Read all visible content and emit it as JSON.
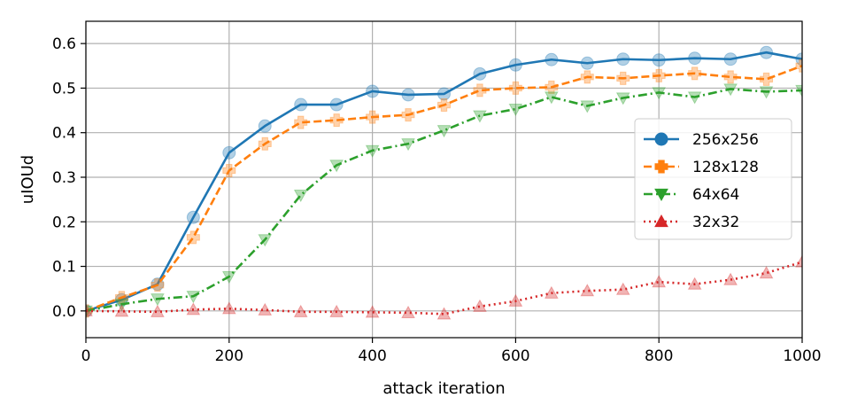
{
  "chart_data": {
    "type": "line",
    "title": "",
    "xlabel": "attack iteration",
    "ylabel": "uIOUd",
    "xlim": [
      0,
      1000
    ],
    "ylim": [
      -0.06,
      0.65
    ],
    "xticks": [
      0,
      200,
      400,
      600,
      800,
      1000
    ],
    "yticks": [
      0.0,
      0.1,
      0.2,
      0.3,
      0.4,
      0.5,
      0.6
    ],
    "xtick_labels": [
      "0",
      "200",
      "400",
      "600",
      "800",
      "1000"
    ],
    "ytick_labels": [
      "0.0",
      "0.1",
      "0.2",
      "0.3",
      "0.4",
      "0.5",
      "0.6"
    ],
    "grid": true,
    "legend_position": "right",
    "x": [
      0,
      50,
      100,
      150,
      200,
      250,
      300,
      350,
      400,
      450,
      500,
      550,
      600,
      650,
      700,
      750,
      800,
      850,
      900,
      950,
      1000
    ],
    "series": [
      {
        "name": "256x256",
        "color": "#1f77b4",
        "line_style": "solid",
        "marker": "circle",
        "values": [
          0.0,
          0.025,
          0.06,
          0.21,
          0.355,
          0.415,
          0.463,
          0.463,
          0.493,
          0.485,
          0.487,
          0.532,
          0.552,
          0.564,
          0.556,
          0.565,
          0.563,
          0.567,
          0.565,
          0.58,
          0.565
        ]
      },
      {
        "name": "128x128",
        "color": "#ff7f0e",
        "line_style": "dashed",
        "marker": "plus",
        "values": [
          0.0,
          0.03,
          0.058,
          0.165,
          0.315,
          0.375,
          0.423,
          0.428,
          0.435,
          0.44,
          0.462,
          0.495,
          0.5,
          0.502,
          0.525,
          0.522,
          0.528,
          0.533,
          0.525,
          0.52,
          0.55
        ]
      },
      {
        "name": "64x64",
        "color": "#2ca02c",
        "line_style": "dashdot",
        "marker": "triangle-down",
        "values": [
          0.0,
          0.015,
          0.027,
          0.033,
          0.077,
          0.16,
          0.26,
          0.327,
          0.36,
          0.375,
          0.405,
          0.438,
          0.453,
          0.48,
          0.46,
          0.478,
          0.49,
          0.48,
          0.498,
          0.492,
          0.495
        ]
      },
      {
        "name": "32x32",
        "color": "#d62728",
        "line_style": "dotted",
        "marker": "triangle-up",
        "values": [
          0.0,
          -0.001,
          -0.002,
          0.003,
          0.005,
          0.002,
          -0.002,
          -0.002,
          -0.003,
          -0.004,
          -0.007,
          0.01,
          0.022,
          0.04,
          0.045,
          0.048,
          0.065,
          0.06,
          0.07,
          0.085,
          0.11
        ]
      }
    ]
  }
}
